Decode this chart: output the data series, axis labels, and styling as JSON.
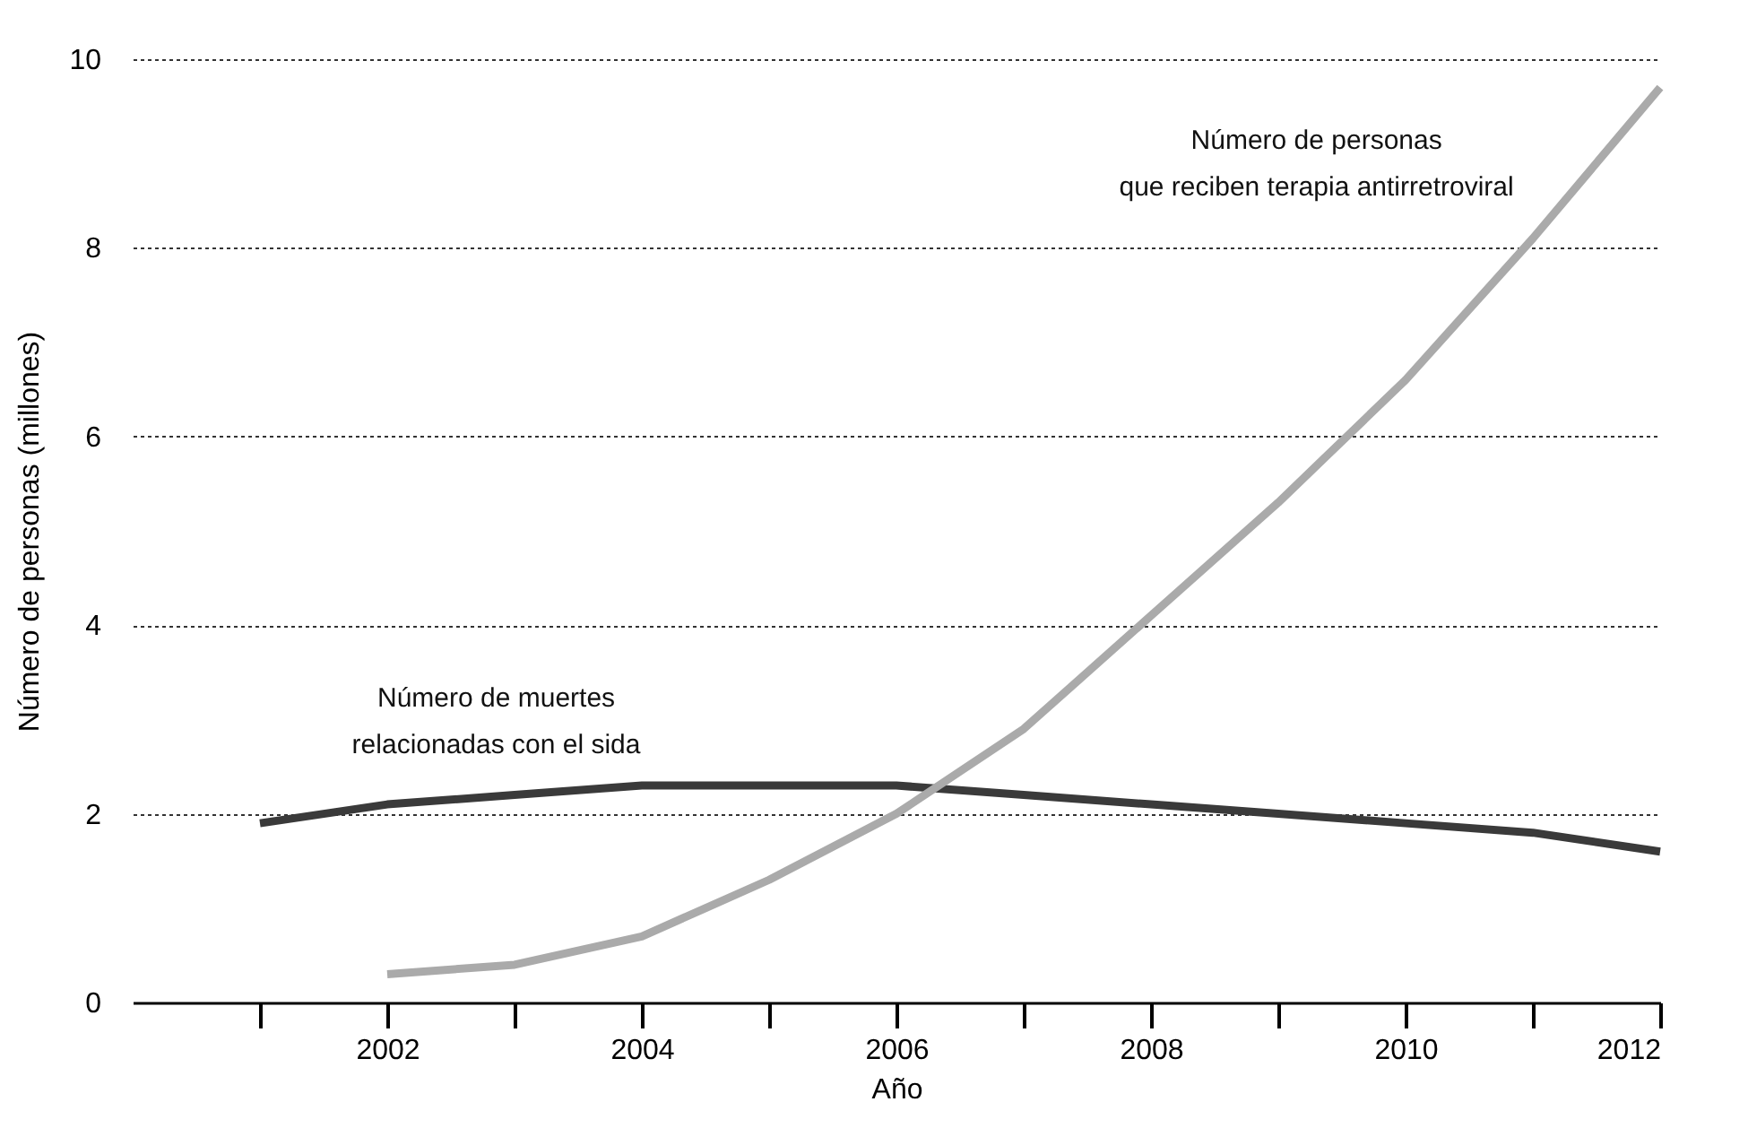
{
  "chart_data": {
    "type": "line",
    "xlabel": "Año",
    "ylabel": "Número de personas (millones)",
    "x": [
      2001,
      2002,
      2003,
      2004,
      2005,
      2006,
      2007,
      2008,
      2009,
      2010,
      2011,
      2012
    ],
    "series": [
      {
        "name": "Número de muertes\nrelacionadas con el sida",
        "color": "#3a3a3a",
        "values": [
          1.9,
          2.1,
          2.2,
          2.3,
          2.3,
          2.3,
          2.2,
          2.1,
          2.0,
          1.9,
          1.8,
          1.6
        ]
      },
      {
        "name": "Número de personas\nque reciben terapia antirretroviral",
        "color": "#aaaaaa",
        "values": [
          null,
          0.3,
          0.4,
          0.7,
          1.3,
          2.0,
          2.9,
          4.1,
          5.3,
          6.6,
          8.1,
          9.7
        ]
      }
    ],
    "xlim": [
      2000,
      2012
    ],
    "xticks": [
      {
        "value": 2001,
        "label": null
      },
      2002,
      {
        "value": 2003,
        "label": null
      },
      2004,
      {
        "value": 2005,
        "label": null
      },
      2006,
      {
        "value": 2007,
        "label": null
      },
      2008,
      {
        "value": 2009,
        "label": null
      },
      2010,
      {
        "value": 2011,
        "label": null
      },
      2012
    ],
    "ylim": [
      0,
      10
    ],
    "yticks": [
      0,
      2,
      4,
      6,
      8,
      10
    ],
    "grid": "y",
    "line_style": "solid"
  }
}
